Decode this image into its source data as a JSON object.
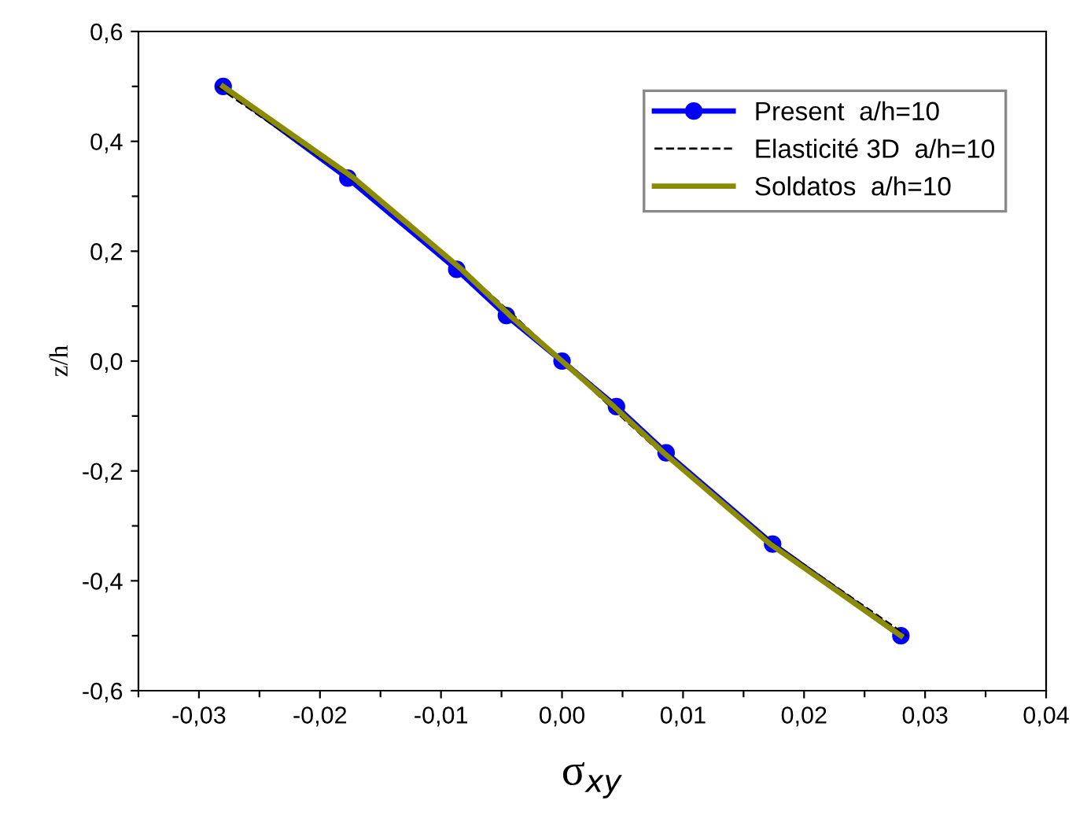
{
  "chart_data": {
    "type": "line",
    "xlabel": "σ$_{xy}$",
    "ylabel": "z/h",
    "xlim": [
      -0.035,
      0.04
    ],
    "ylim": [
      -0.6,
      0.6
    ],
    "xticks": [
      {
        "value": -0.035,
        "label": null
      },
      {
        "value": -0.03,
        "label": "-0,03"
      },
      {
        "value": -0.025,
        "label": null
      },
      {
        "value": -0.02,
        "label": "-0,02"
      },
      {
        "value": -0.015,
        "label": null
      },
      {
        "value": -0.01,
        "label": "-0,01"
      },
      {
        "value": -0.005,
        "label": null
      },
      {
        "value": 0,
        "label": "0,00"
      },
      {
        "value": 0.005,
        "label": null
      },
      {
        "value": 0.01,
        "label": "0,01"
      },
      {
        "value": 0.015,
        "label": null
      },
      {
        "value": 0.02,
        "label": "0,02"
      },
      {
        "value": 0.025,
        "label": null
      },
      {
        "value": 0.03,
        "label": "0,03"
      },
      {
        "value": 0.035,
        "label": null
      },
      {
        "value": 0.04,
        "label": "0,04"
      }
    ],
    "yticks": [
      {
        "value": -0.6,
        "label": "-0,6"
      },
      {
        "value": -0.5,
        "label": null
      },
      {
        "value": -0.4,
        "label": "-0,4"
      },
      {
        "value": -0.3,
        "label": null
      },
      {
        "value": -0.2,
        "label": "-0,2"
      },
      {
        "value": -0.1,
        "label": null
      },
      {
        "value": 0,
        "label": "0,0"
      },
      {
        "value": 0.1,
        "label": null
      },
      {
        "value": 0.2,
        "label": "0,2"
      },
      {
        "value": 0.3,
        "label": null
      },
      {
        "value": 0.4,
        "label": "0,4"
      },
      {
        "value": 0.5,
        "label": null
      },
      {
        "value": 0.6,
        "label": "0,6"
      }
    ],
    "legend": "top right",
    "grid": false,
    "series": [
      {
        "name": "Present  a/h=10",
        "color": "#0000ff",
        "marker": "circle",
        "line_style": "solid",
        "x": [
          -0.028,
          -0.0177,
          -0.0087,
          -0.0046,
          0,
          0.0045,
          0.0086,
          0.0174,
          0.028
        ],
        "values": [
          0.5,
          0.333,
          0.167,
          0.083,
          0,
          -0.083,
          -0.167,
          -0.333,
          -0.5
        ]
      },
      {
        "name": "Elasticité 3D  a/h=10",
        "color": "#000000",
        "marker": "none",
        "line_style": "dashed",
        "x": [
          -0.0285,
          -0.0175,
          -0.0082,
          -0.004,
          0,
          0.004,
          0.0082,
          0.0175,
          0.0285
        ],
        "values": [
          0.5,
          0.333,
          0.167,
          0.083,
          0,
          -0.083,
          -0.167,
          -0.333,
          -0.5
        ]
      },
      {
        "name": "Soldatos  a/h=10",
        "color": "#8b8b00",
        "marker": "none",
        "line_style": "solid",
        "x": [
          -0.028,
          -0.0172,
          -0.0083,
          -0.0043,
          0,
          0.0043,
          0.0084,
          0.0172,
          0.028
        ],
        "values": [
          0.5,
          0.333,
          0.167,
          0.083,
          0,
          -0.083,
          -0.167,
          -0.333,
          -0.5
        ]
      }
    ]
  }
}
